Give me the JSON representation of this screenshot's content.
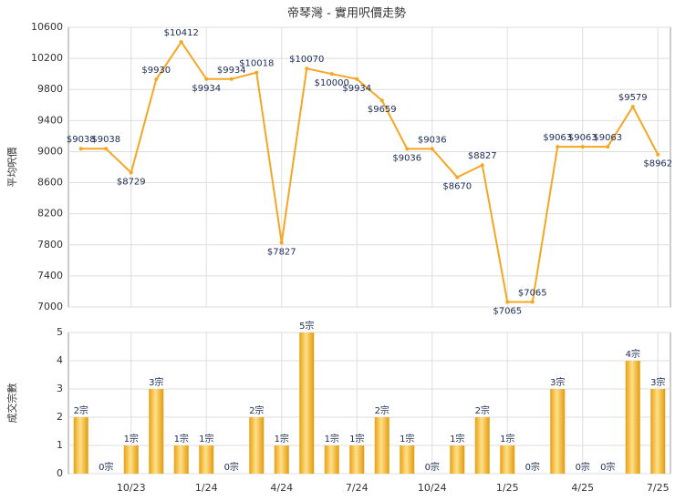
{
  "chart_data": [
    {
      "type": "line",
      "title": "帝琴灣 - 實用呎價走勢",
      "y_label": "平均呎價",
      "color": "#f5a623",
      "categories": [
        null,
        null,
        "10/23",
        null,
        null,
        "1/24",
        null,
        null,
        "4/24",
        null,
        null,
        "7/24",
        null,
        null,
        "10/24",
        null,
        null,
        "1/25",
        null,
        null,
        "4/25",
        null,
        null,
        "7/25"
      ],
      "values": [
        9038,
        9038,
        8729,
        9930,
        10412,
        9934,
        9934,
        10018,
        7827,
        10070,
        10000,
        9934,
        9659,
        9036,
        9036,
        8670,
        8827,
        7065,
        7065,
        9063,
        9063,
        9063,
        9579,
        8962
      ],
      "value_labels": [
        "$9038",
        "$9038",
        "$8729",
        "$9930",
        "$10412",
        "$9934",
        "$9934",
        "$10018",
        "$7827",
        "$10070",
        "$10000",
        "$9934",
        "$9659",
        "$9036",
        "$9036",
        "$8670",
        "$8827",
        "$7065",
        "$7065",
        "$9063",
        "$9063",
        "$9063",
        "$9579",
        "$8962"
      ],
      "ylim": [
        7000,
        10600
      ],
      "yticks": [
        7000,
        7400,
        7800,
        8200,
        8600,
        9000,
        9400,
        9800,
        10200,
        10600
      ],
      "grid": true
    },
    {
      "type": "bar",
      "y_label": "成交宗數",
      "color": "#f0b020",
      "categories": [
        null,
        null,
        "10/23",
        null,
        null,
        "1/24",
        null,
        null,
        "4/24",
        null,
        null,
        "7/24",
        null,
        null,
        "10/24",
        null,
        null,
        "1/25",
        null,
        null,
        "4/25",
        null,
        null,
        "7/25"
      ],
      "values": [
        2,
        0,
        1,
        3,
        1,
        1,
        0,
        2,
        1,
        5,
        1,
        1,
        2,
        1,
        0,
        1,
        2,
        1,
        0,
        3,
        0,
        0,
        4,
        3
      ],
      "value_labels": [
        "2宗",
        "0宗",
        "1宗",
        "3宗",
        "1宗",
        "1宗",
        "0宗",
        "2宗",
        "1宗",
        "5宗",
        "1宗",
        "1宗",
        "2宗",
        "1宗",
        "0宗",
        "1宗",
        "2宗",
        "1宗",
        "0宗",
        "3宗",
        "0宗",
        "0宗",
        "4宗",
        "3宗"
      ],
      "ylim": [
        0,
        5
      ],
      "yticks": [
        0,
        1,
        2,
        3,
        4,
        5
      ],
      "grid": true
    }
  ]
}
